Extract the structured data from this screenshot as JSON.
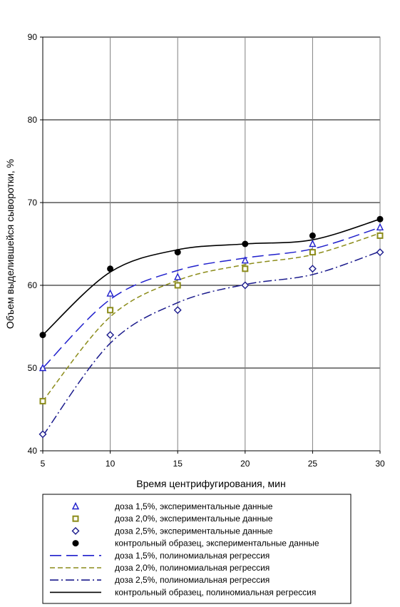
{
  "chart_data": {
    "type": "scatter",
    "xlabel": "Время центрифугирования, мин",
    "ylabel": "Объем выделившейся сыворотки, %",
    "xlim": [
      5,
      30
    ],
    "ylim": [
      40,
      90
    ],
    "x_ticks": [
      "5",
      "10",
      "15",
      "20",
      "25",
      "30"
    ],
    "y_ticks": [
      "40",
      "50",
      "60",
      "70",
      "80",
      "90"
    ],
    "grid": "major, both axes",
    "legend_position": "bottom",
    "x": [
      5,
      10,
      15,
      20,
      25,
      30
    ],
    "series": [
      {
        "name": "доза 1,5%, экспериментальные данные",
        "kind": "points",
        "marker": "triangle",
        "color": "#1f1fcc",
        "values": [
          50,
          59,
          61,
          63,
          65,
          67
        ]
      },
      {
        "name": "доза 2,0%, экспериментальные данные",
        "kind": "points",
        "marker": "square",
        "color": "#8c8c1a",
        "values": [
          46,
          57,
          60,
          62,
          64,
          66
        ]
      },
      {
        "name": "доза 2,5%, экспериментальные данные",
        "kind": "points",
        "marker": "diamond",
        "color": "#1a1a8c",
        "values": [
          42,
          54,
          57,
          60,
          62,
          64
        ]
      },
      {
        "name": "контрольный образец, экспериментальные данные",
        "kind": "points",
        "marker": "circle",
        "color": "#000000",
        "values": [
          54,
          62,
          64,
          65,
          66,
          68
        ]
      },
      {
        "name": "доза 1,5%, полиномиальная регрессия",
        "kind": "curve",
        "dash": "long-dash",
        "color": "#1f1fcc",
        "values": [
          50,
          58.3,
          61.8,
          63.3,
          64.4,
          67
        ]
      },
      {
        "name": "доза 2,0%, полиномиальная регрессия",
        "kind": "curve",
        "dash": "dash",
        "color": "#8c8c1a",
        "values": [
          46,
          56.2,
          60.6,
          62.5,
          63.7,
          66.3
        ]
      },
      {
        "name": "доза 2,5%, полиномиальная регрессия",
        "kind": "curve",
        "dash": "dash-dot",
        "color": "#1a1a8c",
        "values": [
          41.8,
          53,
          57.9,
          60.1,
          61.3,
          64.1
        ]
      },
      {
        "name": "контрольный образец, полиномиальная регрессия",
        "kind": "curve",
        "dash": "solid",
        "color": "#000000",
        "values": [
          54,
          61.6,
          64.3,
          65,
          65.5,
          68
        ]
      }
    ]
  }
}
